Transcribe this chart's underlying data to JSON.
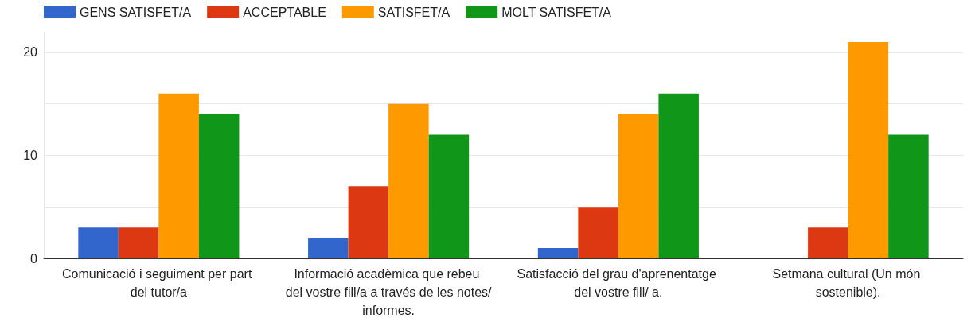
{
  "chart_data": {
    "type": "bar",
    "categories": [
      "Comunicació i seguiment per part del tutor/a",
      "Informació acadèmica que rebeu del vostre fill/a a través de les notes/informes.",
      "Satisfacció del grau d'aprenentatge del vostre fill/ a.",
      "Setmana cultural (Un món sostenible)."
    ],
    "series": [
      {
        "name": "GENS SATISFET/A",
        "color": "#3366cc",
        "values": [
          3,
          2,
          1,
          0
        ]
      },
      {
        "name": "ACCEPTABLE",
        "color": "#dc3912",
        "values": [
          3,
          7,
          5,
          3
        ]
      },
      {
        "name": "SATISFET/A",
        "color": "#ff9900",
        "values": [
          16,
          15,
          14,
          21
        ]
      },
      {
        "name": "MOLT SATISFET/A",
        "color": "#109618",
        "values": [
          14,
          12,
          16,
          12
        ]
      }
    ],
    "ylim": [
      0,
      22
    ],
    "yticks": [
      0,
      {
        "value": 5,
        "label": null
      },
      10,
      {
        "value": 15,
        "label": null
      },
      20
    ],
    "grid": "y",
    "legend": "top left"
  }
}
